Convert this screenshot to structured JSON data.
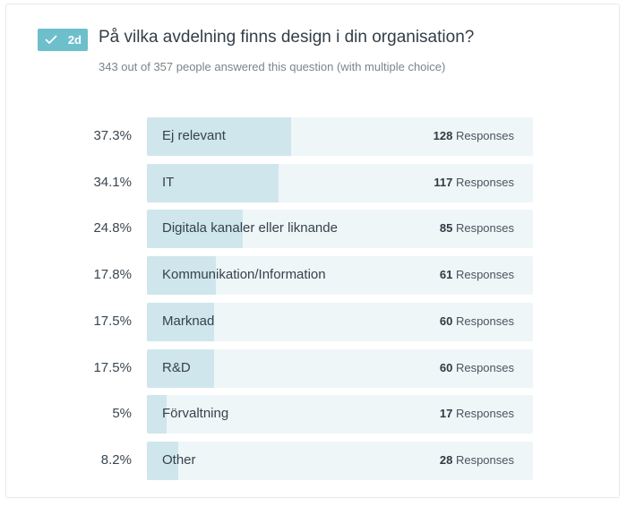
{
  "question": {
    "badge": "2d",
    "title": "På vilka avdelning finns design i din organisation?",
    "subtitle": "343 out of 357 people answered this question (with multiple choice)"
  },
  "responses_suffix": "Responses",
  "colors": {
    "badge": "#6dbfcc",
    "fill": "#cfe6ec",
    "track": "#eef6f8"
  },
  "chart_data": {
    "type": "bar",
    "orientation": "horizontal",
    "title": "På vilka avdelning finns design i din organisation?",
    "xlim": [
      0,
      100
    ],
    "categories": [
      "Ej relevant",
      "IT",
      "Digitala kanaler eller liknande",
      "Kommunikation/Information",
      "Marknad",
      "R&D",
      "Förvaltning",
      "Other"
    ],
    "percent_labels": [
      "37.3%",
      "34.1%",
      "24.8%",
      "17.8%",
      "17.5%",
      "17.5%",
      "5%",
      "8.2%"
    ],
    "values": [
      37.3,
      34.1,
      24.8,
      17.8,
      17.5,
      17.5,
      5,
      8.2
    ],
    "responses": [
      128,
      117,
      85,
      61,
      60,
      60,
      17,
      28
    ]
  }
}
